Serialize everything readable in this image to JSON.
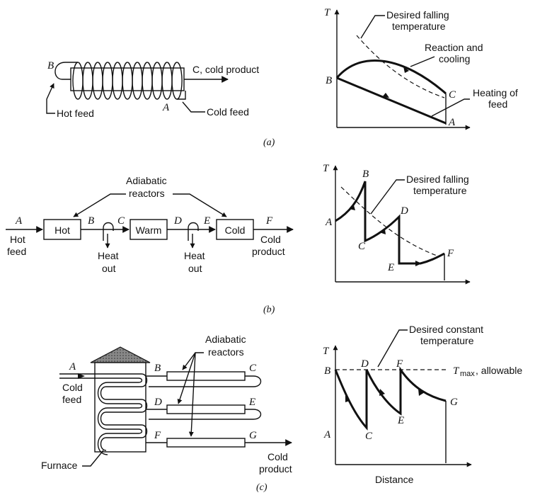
{
  "panel_a": {
    "caption": "(a)",
    "left": {
      "label_b": "B",
      "label_c_product": "C, cold product",
      "label_a": "A",
      "hot_feed": "Hot feed",
      "cold_feed": "Cold feed"
    },
    "right": {
      "axis_t": "T",
      "desired": "Desired falling",
      "desired2": "temperature",
      "reaction": "Reaction and",
      "reaction2": "cooling",
      "heating": "Heating of",
      "heating2": "feed",
      "pt_b": "B",
      "pt_c": "C",
      "pt_a": "A"
    }
  },
  "panel_b": {
    "caption": "(b)",
    "left": {
      "adiabatic": "Adiabatic",
      "reactors": "reactors",
      "hot": "Hot",
      "warm": "Warm",
      "cold": "Cold",
      "a": "A",
      "b": "B",
      "c": "C",
      "d": "D",
      "e": "E",
      "f": "F",
      "hot_feed1": "Hot",
      "hot_feed2": "feed",
      "cold_prod1": "Cold",
      "cold_prod2": "product",
      "heat1a": "Heat",
      "heat1b": "out",
      "heat2a": "Heat",
      "heat2b": "out"
    },
    "right": {
      "axis_t": "T",
      "desired": "Desired falling",
      "desired2": "temperature",
      "a": "A",
      "b": "B",
      "c": "C",
      "d": "D",
      "e": "E",
      "f": "F"
    }
  },
  "panel_c": {
    "caption": "(c)",
    "left": {
      "adiabatic": "Adiabatic",
      "reactors": "reactors",
      "a": "A",
      "b": "B",
      "c": "C",
      "d": "D",
      "e": "E",
      "f": "F",
      "g": "G",
      "cold_feed1": "Cold",
      "cold_feed2": "feed",
      "furnace": "Furnace",
      "cold_prod1": "Cold",
      "cold_prod2": "product"
    },
    "right": {
      "axis_t": "T",
      "desired": "Desired constant",
      "desired2": "temperature",
      "tmax_t": "T",
      "tmax_sub": "max",
      "tmax_rest": ", allowable",
      "b": "B",
      "d": "D",
      "f": "F",
      "a": "A",
      "c": "C",
      "e": "E",
      "g": "G",
      "distance": "Distance"
    }
  }
}
